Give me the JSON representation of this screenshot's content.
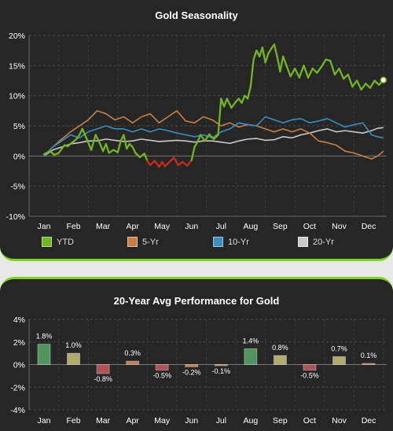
{
  "chart_data": [
    {
      "type": "line",
      "title": "Gold Seasonality",
      "xlabel": "",
      "ylabel": "",
      "categories": [
        "Jan",
        "Feb",
        "Mar",
        "Apr",
        "May",
        "Jun",
        "Jul",
        "Aug",
        "Sep",
        "Oct",
        "Nov",
        "Dec"
      ],
      "yticks": [
        "20%",
        "15%",
        "10%",
        "5%",
        "0%",
        "-5%",
        "-10%"
      ],
      "ylim": [
        -10,
        20
      ],
      "grid": true,
      "legend_position": "bottom",
      "series": [
        {
          "name": "YTD",
          "color": "#72b520",
          "negative_color": "#cc2a1a",
          "x": [
            0,
            0.2,
            0.35,
            0.5,
            0.6,
            0.7,
            0.8,
            0.9,
            1.0,
            1.1,
            1.2,
            1.3,
            1.45,
            1.6,
            1.75,
            1.9,
            2.0,
            2.1,
            2.2,
            2.35,
            2.5,
            2.6,
            2.7,
            2.8,
            2.9,
            3.0,
            3.1,
            3.25,
            3.4,
            3.5,
            3.6,
            3.75,
            3.9,
            4.0,
            4.1,
            4.25,
            4.4,
            4.55,
            4.7,
            4.85,
            5.0,
            5.1,
            5.2,
            5.3,
            5.45,
            5.6,
            5.75,
            5.9,
            6.0,
            6.1,
            6.2,
            6.35,
            6.5,
            6.6,
            6.7,
            6.8,
            6.9,
            7.0,
            7.1,
            7.2,
            7.3,
            7.4,
            7.5,
            7.6,
            7.7,
            7.8,
            7.9,
            8.0,
            8.1,
            8.2,
            8.35,
            8.5,
            8.65,
            8.8,
            8.95,
            9.1,
            9.25,
            9.4,
            9.55,
            9.7,
            9.85,
            10.0,
            10.15,
            10.3,
            10.45,
            10.6,
            10.75,
            10.9,
            11.05,
            11.2,
            11.35,
            11.5
          ],
          "values": [
            0.3,
            0.8,
            0.2,
            0.5,
            1.2,
            1.8,
            1.6,
            2.0,
            2.4,
            2.8,
            3.5,
            4.5,
            2.8,
            1.0,
            3.5,
            2.0,
            0.8,
            2.0,
            0.5,
            1.0,
            0.6,
            2.5,
            3.5,
            1.2,
            2.0,
            1.5,
            0.5,
            -0.2,
            0.4,
            -0.8,
            -1.5,
            -0.8,
            -1.8,
            -1.0,
            -1.7,
            -1.0,
            -0.3,
            -1.5,
            -1.0,
            -1.6,
            -0.7,
            1.5,
            2.3,
            3.5,
            2.5,
            3.6,
            2.8,
            3.5,
            9.5,
            8.2,
            9.5,
            8.0,
            9.0,
            9.5,
            8.8,
            10.0,
            9.5,
            11.5,
            16.0,
            17.5,
            16.5,
            18.0,
            15.5,
            17.0,
            17.8,
            18.5,
            16.5,
            14.0,
            16.5,
            15.2,
            13.2,
            14.5,
            13.0,
            15.0,
            13.0,
            14.5,
            13.8,
            14.8,
            16.0,
            15.8,
            13.5,
            14.5,
            12.8,
            13.5,
            11.5,
            12.5,
            11.0,
            12.0,
            11.3,
            12.5,
            11.8,
            12.6
          ]
        },
        {
          "name": "5-Yr",
          "color": "#c97f46",
          "x": [
            0,
            0.3,
            0.6,
            0.9,
            1.2,
            1.5,
            1.8,
            2.1,
            2.4,
            2.7,
            3.0,
            3.3,
            3.6,
            3.9,
            4.2,
            4.5,
            4.8,
            5.1,
            5.4,
            5.7,
            6.0,
            6.3,
            6.6,
            6.9,
            7.2,
            7.5,
            7.8,
            8.1,
            8.4,
            8.7,
            9.0,
            9.3,
            9.6,
            9.9,
            10.2,
            10.5,
            10.8,
            11.1,
            11.3,
            11.5
          ],
          "values": [
            0,
            1.5,
            2.8,
            4.0,
            5.0,
            6.0,
            7.5,
            7.0,
            6.0,
            6.5,
            5.5,
            6.5,
            7.0,
            5.5,
            6.5,
            7.5,
            5.8,
            5.5,
            6.5,
            6.0,
            5.0,
            5.5,
            4.8,
            5.2,
            5.0,
            4.5,
            4.0,
            4.5,
            4.0,
            4.5,
            3.8,
            2.5,
            2.2,
            1.8,
            0.8,
            0.5,
            0.0,
            -0.5,
            0.0,
            0.8
          ]
        },
        {
          "name": "10-Yr",
          "color": "#3b8ec3",
          "x": [
            0,
            0.3,
            0.6,
            0.9,
            1.2,
            1.5,
            1.8,
            2.1,
            2.4,
            2.7,
            3.0,
            3.3,
            3.6,
            3.9,
            4.2,
            4.5,
            4.8,
            5.1,
            5.4,
            5.7,
            6.0,
            6.3,
            6.6,
            6.9,
            7.2,
            7.5,
            7.8,
            8.1,
            8.4,
            8.7,
            9.0,
            9.3,
            9.6,
            9.9,
            10.2,
            10.5,
            10.8,
            11.1,
            11.3,
            11.5
          ],
          "values": [
            0,
            1.5,
            2.5,
            3.5,
            3.0,
            4.0,
            4.5,
            5.0,
            4.5,
            4.5,
            4.0,
            4.5,
            4.0,
            4.5,
            4.2,
            3.8,
            3.5,
            3.2,
            3.5,
            3.0,
            4.0,
            4.5,
            5.5,
            5.2,
            5.0,
            6.5,
            6.0,
            5.5,
            6.0,
            6.2,
            5.5,
            5.8,
            6.2,
            5.5,
            4.8,
            5.2,
            5.5,
            3.5,
            3.2,
            3.0
          ]
        },
        {
          "name": "20-Yr",
          "color": "#c8c8c8",
          "x": [
            0,
            0.3,
            0.6,
            0.9,
            1.2,
            1.5,
            1.8,
            2.1,
            2.4,
            2.7,
            3.0,
            3.3,
            3.6,
            3.9,
            4.2,
            4.5,
            4.8,
            5.1,
            5.4,
            5.7,
            6.0,
            6.3,
            6.6,
            6.9,
            7.2,
            7.5,
            7.8,
            8.1,
            8.4,
            8.7,
            9.0,
            9.3,
            9.6,
            9.9,
            10.2,
            10.5,
            10.8,
            11.1,
            11.3,
            11.5
          ],
          "values": [
            0,
            1.0,
            1.5,
            2.0,
            2.2,
            2.5,
            2.5,
            2.8,
            2.6,
            2.4,
            2.5,
            2.8,
            2.6,
            2.4,
            2.5,
            2.6,
            2.5,
            2.3,
            2.5,
            2.5,
            2.3,
            2.1,
            2.5,
            2.8,
            2.9,
            2.6,
            2.7,
            3.2,
            3.0,
            3.5,
            3.8,
            4.2,
            4.5,
            4.0,
            4.2,
            4.0,
            3.8,
            4.2,
            4.6,
            4.7
          ]
        }
      ]
    },
    {
      "type": "bar",
      "title": "20-Year Avg Performance for Gold",
      "xlabel": "",
      "ylabel": "",
      "categories": [
        "Jan",
        "Feb",
        "Mar",
        "Apr",
        "May",
        "Jun",
        "Jul",
        "Aug",
        "Sep",
        "Oct",
        "Nov",
        "Dec"
      ],
      "values": [
        1.8,
        1.0,
        -0.8,
        0.3,
        -0.5,
        -0.2,
        -0.1,
        1.4,
        0.8,
        -0.5,
        0.7,
        0.1
      ],
      "labels": [
        "1.8%",
        "1.0%",
        "-0.8%",
        "0.3%",
        "-0.5%",
        "-0.2%",
        "-0.1%",
        "1.4%",
        "0.8%",
        "-0.5%",
        "0.7%",
        "0.1%"
      ],
      "colors": [
        "#5aa86b",
        "#c8c37c",
        "#c85a5f",
        "#d9915a",
        "#c85a5f",
        "#d9915a",
        "#d9915a",
        "#5aa86b",
        "#c8c37c",
        "#c85a5f",
        "#c8c37c",
        "#d9915a"
      ],
      "yticks": [
        "4%",
        "2%",
        "0%",
        "-2%",
        "-4%"
      ],
      "ylim": [
        -4,
        4
      ],
      "grid": true
    }
  ]
}
